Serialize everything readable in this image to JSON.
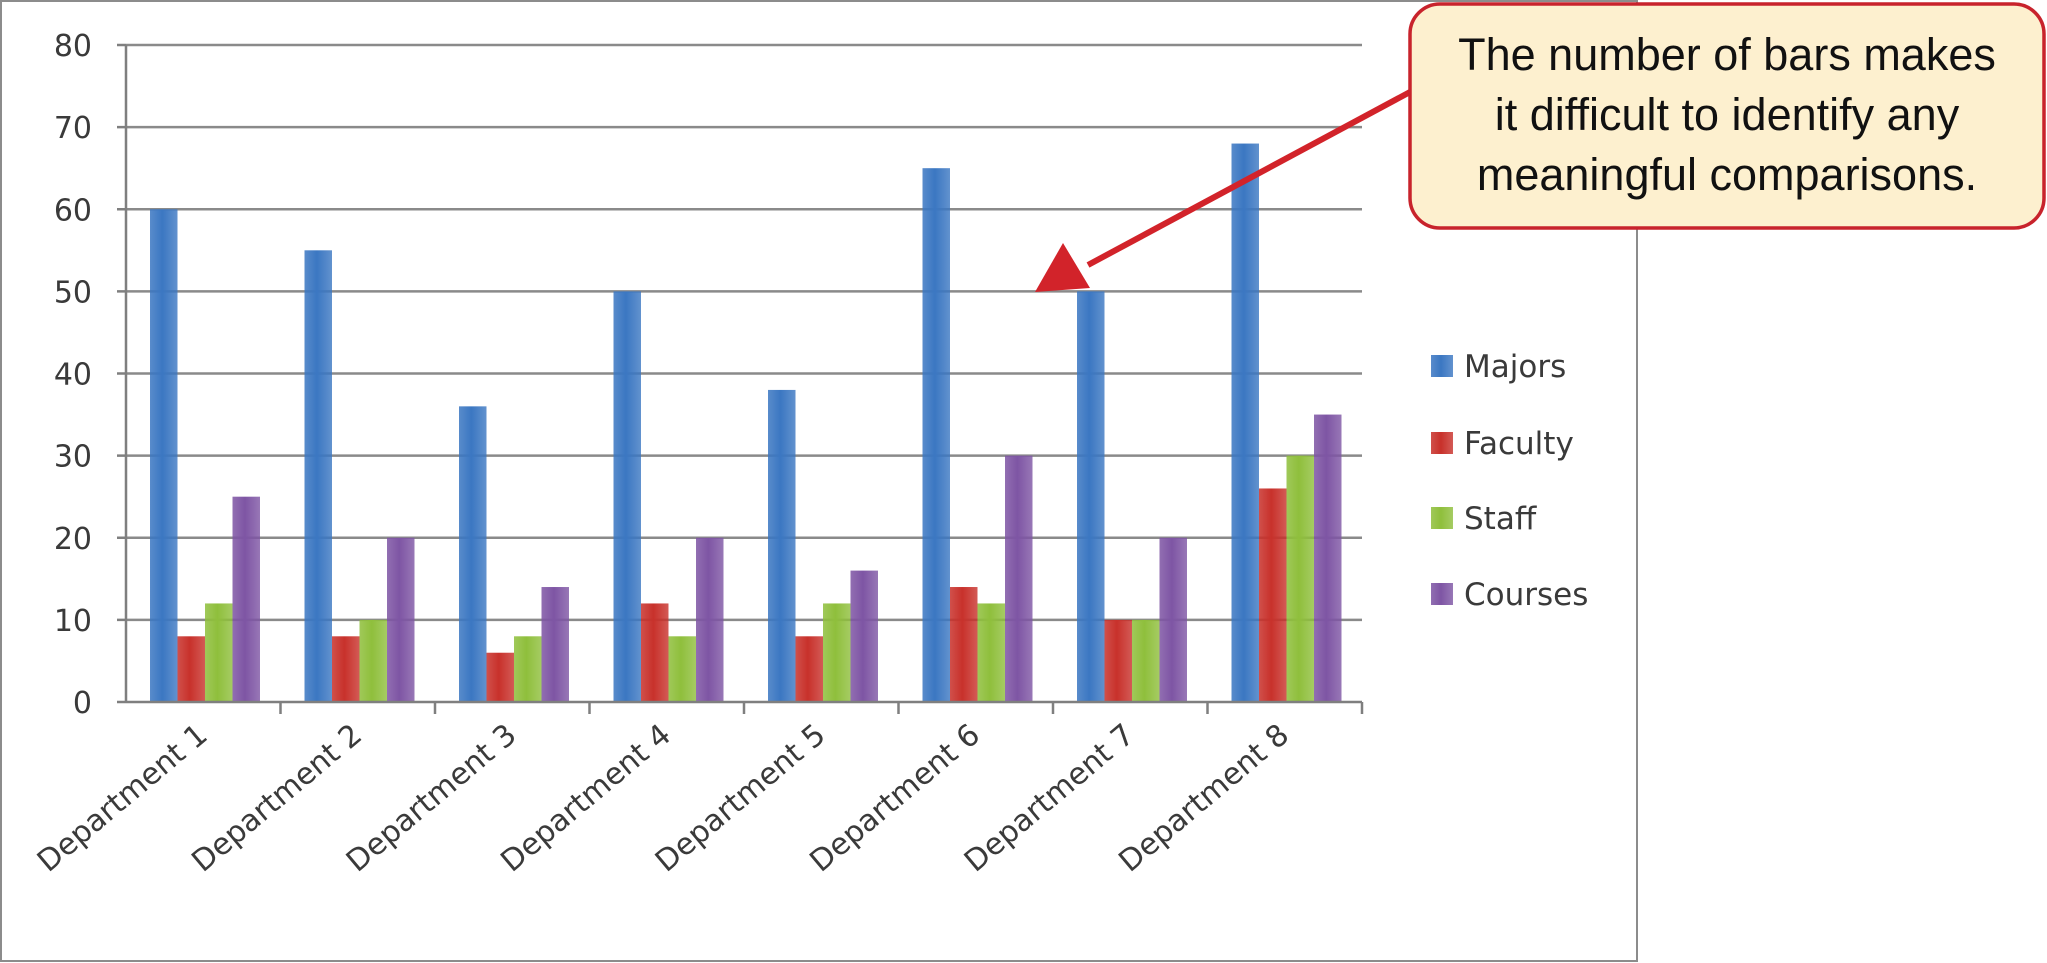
{
  "chart_data": {
    "type": "bar",
    "categories": [
      "Department 1",
      "Department 2",
      "Department 3",
      "Department 4",
      "Department 5",
      "Department 6",
      "Department 7",
      "Department 8"
    ],
    "series": [
      {
        "name": "Majors",
        "color": "#3b77c2",
        "values": [
          60,
          55,
          36,
          50,
          38,
          65,
          50,
          68
        ]
      },
      {
        "name": "Faculty",
        "color": "#c8312b",
        "values": [
          8,
          8,
          6,
          12,
          8,
          14,
          10,
          26
        ]
      },
      {
        "name": "Staff",
        "color": "#8fbf3c",
        "values": [
          12,
          10,
          8,
          8,
          12,
          12,
          10,
          30
        ]
      },
      {
        "name": "Courses",
        "color": "#7e55a4",
        "values": [
          25,
          20,
          14,
          20,
          16,
          30,
          20,
          35
        ]
      }
    ],
    "ylim": [
      0,
      80
    ],
    "yticks": [
      0,
      10,
      20,
      30,
      40,
      50,
      60,
      70,
      80
    ],
    "grid": true,
    "legend_position": "right",
    "annotation": {
      "lines": [
        "The number of bars makes",
        "it difficult to identify any",
        "meaningful comparisons."
      ],
      "fill": "#fdf0cf",
      "border": "#c8232c",
      "arrow_color": "#d2232a"
    }
  }
}
